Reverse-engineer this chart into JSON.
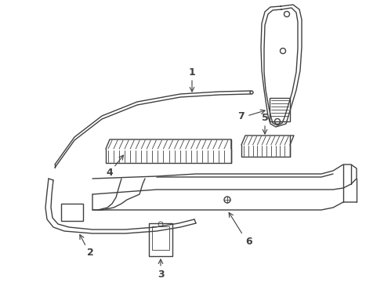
{
  "bg_color": "#ffffff",
  "line_color": "#404040",
  "label_color": "#000000",
  "fig_width": 4.9,
  "fig_height": 3.6,
  "dpi": 100
}
